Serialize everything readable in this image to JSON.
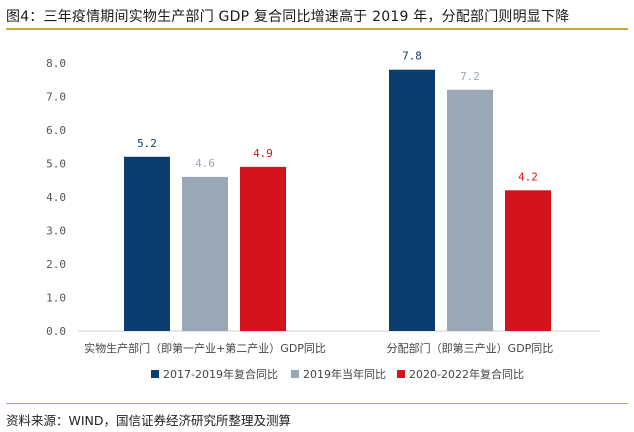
{
  "title": "图4：三年疫情期间实物生产部门 GDP 复合同比增速高于 2019 年，分配部门则明显下降",
  "source": "资料来源：WIND，国信证券经济研究所整理及测算",
  "chart_data": {
    "type": "bar",
    "categories": [
      "实物生产部门（即第一产业+第二产业）GDP同比",
      "分配部门（即第三产业）GDP同比"
    ],
    "series": [
      {
        "name": "2017-2019年复合同比",
        "values": [
          5.2,
          7.8
        ],
        "color": "#0b3d6f",
        "label_color": "#0b3d6f"
      },
      {
        "name": "2019年当年同比",
        "values": [
          4.6,
          7.2
        ],
        "color": "#9aa8b6",
        "label_color": "#9aa8b6"
      },
      {
        "name": "2020-2022年复合同比",
        "values": [
          4.9,
          4.2
        ],
        "color": "#d3141e",
        "label_color": "#d3141e"
      }
    ],
    "data_labels": [
      [
        "5.2",
        "4.6",
        "4.9"
      ],
      [
        "7.8",
        "7.2",
        "4.2"
      ]
    ],
    "yticks": [
      "0.0",
      "1.0",
      "2.0",
      "3.0",
      "4.0",
      "5.0",
      "6.0",
      "7.0",
      "8.0"
    ],
    "ylim": [
      0,
      8
    ],
    "grid": false,
    "legend": "bottom"
  }
}
